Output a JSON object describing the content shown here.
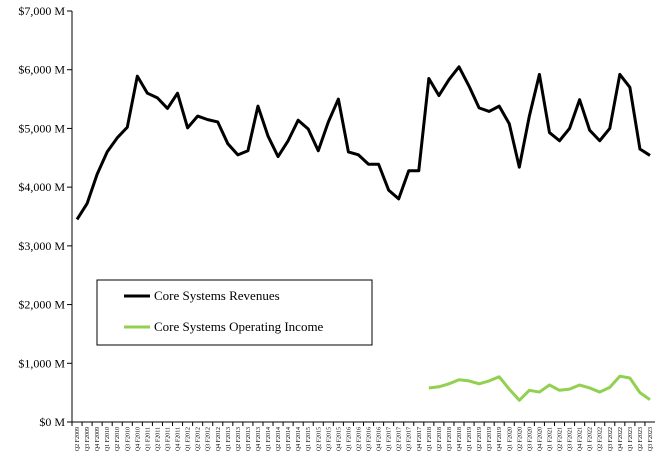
{
  "chart_data": {
    "type": "line",
    "title": "",
    "xlabel": "",
    "ylabel": "",
    "ylim": [
      0,
      7000
    ],
    "yticks": [
      0,
      1000,
      2000,
      3000,
      4000,
      5000,
      6000,
      7000
    ],
    "ytick_labels": [
      "$0 M",
      "$1,000 M",
      "$2,000 M",
      "$3,000 M",
      "$4,000 M",
      "$5,000 M",
      "$6,000 M",
      "$7,000 M"
    ],
    "grid": false,
    "legend_position": "lower-left",
    "categories": [
      "Q2 F2009",
      "Q3 F2009",
      "Q4 F2009",
      "Q1 F2010",
      "Q2 F2010",
      "Q3 F2010",
      "Q4 F2010",
      "Q1 F2011",
      "Q2 F2011",
      "Q3 F2011",
      "Q4 F2011",
      "Q1 F2012",
      "Q2 F2012",
      "Q3 F2012",
      "Q4 F2012",
      "Q1 F2013",
      "Q2 F2013",
      "Q3 F2013",
      "Q4 F2013",
      "Q1 F2014",
      "Q2 F2014",
      "Q3 F2014",
      "Q4 F2014",
      "Q1 F2015",
      "Q2 F2015",
      "Q3 F2015",
      "Q4 F2015",
      "Q1 F2016",
      "Q2 F2016",
      "Q3 F2016",
      "Q4 F2016",
      "Q1 F2017",
      "Q2 F2017",
      "Q3 F2017",
      "Q4 F2017",
      "Q1 F2018",
      "Q2 F2018",
      "Q3 F2018",
      "Q4 F2018",
      "Q1 F2019",
      "Q2 F2019",
      "Q3 F2019",
      "Q4 F2019",
      "Q1 F2020",
      "Q2 F2020",
      "Q3 F2020",
      "Q4 F2020",
      "Q1 F2021",
      "Q2 F2021",
      "Q3 F2021",
      "Q4 F2021",
      "Q1 F2022",
      "Q2 F2022",
      "Q3 F2022",
      "Q4 F2022",
      "Q1 F2023",
      "Q2 F2023",
      "Q3 F2023"
    ],
    "series": [
      {
        "name": "Core Systems Revenues",
        "color": "#000000",
        "values": [
          3450,
          3720,
          4220,
          4600,
          4840,
          5020,
          5890,
          5600,
          5520,
          5340,
          5600,
          5010,
          5210,
          5150,
          5110,
          4740,
          4550,
          4620,
          5380,
          4870,
          4520,
          4790,
          5140,
          4990,
          4620,
          5110,
          5500,
          4600,
          4550,
          4390,
          4390,
          3950,
          3800,
          4280,
          4280,
          5850,
          5560,
          5830,
          6050,
          5720,
          5350,
          5290,
          5380,
          5080,
          4340,
          5210,
          5920,
          4930,
          4790,
          5000,
          5490,
          4970,
          4790,
          5000,
          5920,
          5700,
          4650,
          4540
        ]
      },
      {
        "name": "Core Systems Operating Income",
        "color": "#92d050",
        "values": [
          null,
          null,
          null,
          null,
          null,
          null,
          null,
          null,
          null,
          null,
          null,
          null,
          null,
          null,
          null,
          null,
          null,
          null,
          null,
          null,
          null,
          null,
          null,
          null,
          null,
          null,
          null,
          null,
          null,
          null,
          null,
          null,
          null,
          null,
          null,
          580,
          600,
          650,
          720,
          700,
          650,
          700,
          770,
          560,
          370,
          540,
          510,
          630,
          540,
          560,
          630,
          580,
          510,
          590,
          780,
          750,
          500,
          380
        ]
      }
    ]
  }
}
